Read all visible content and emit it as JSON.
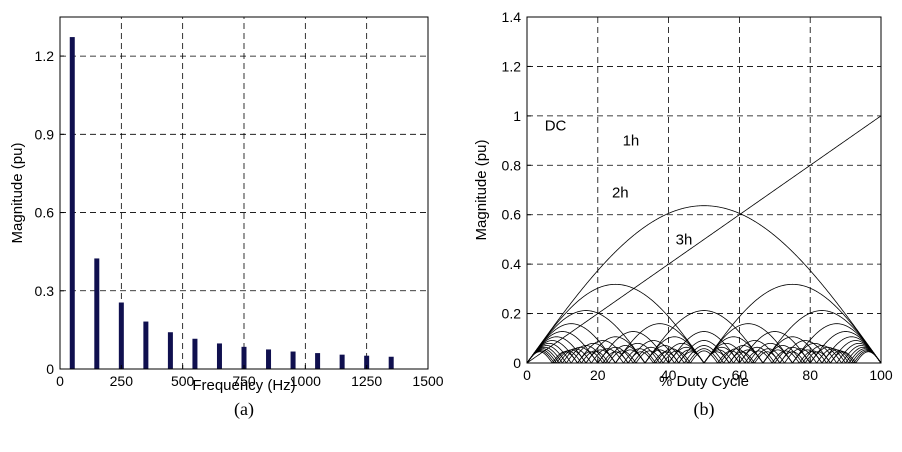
{
  "chart_data": [
    {
      "type": "bar",
      "caption": "(a)",
      "xlabel": "Frequency (Hz)",
      "ylabel": "Magnitude (pu)",
      "xlim": [
        0,
        1500
      ],
      "ylim": [
        0,
        1.35
      ],
      "xticks": [
        "0",
        "250",
        "500",
        "750",
        "1000",
        "1250",
        "1500"
      ],
      "yticks": [
        "0",
        "0.3",
        "0.6",
        "0.9",
        "1.2"
      ],
      "grid": true,
      "bar_color": "#10104f",
      "x": [
        50,
        150,
        250,
        350,
        450,
        550,
        650,
        750,
        850,
        950,
        1050,
        1150,
        1250,
        1350
      ],
      "values": [
        1.273,
        0.424,
        0.255,
        0.182,
        0.141,
        0.116,
        0.098,
        0.085,
        0.075,
        0.067,
        0.061,
        0.055,
        0.051,
        0.047
      ]
    },
    {
      "type": "line",
      "caption": "(b)",
      "xlabel": "% Duty Cycle",
      "ylabel": "Magnitude (pu)",
      "xlim": [
        0,
        100
      ],
      "ylim": [
        0,
        1.4
      ],
      "xticks": [
        "0",
        "20",
        "40",
        "60",
        "80",
        "100"
      ],
      "yticks": [
        "0",
        "0.2",
        "0.4",
        "0.6",
        "0.8",
        "1",
        "1.2",
        "1.4"
      ],
      "grid": true,
      "harmonic_count": 14,
      "annotations": [
        {
          "text": "DC",
          "x": 5,
          "y": 0.94
        },
        {
          "text": "1h",
          "x": 27,
          "y": 0.88
        },
        {
          "text": "2h",
          "x": 24,
          "y": 0.67
        },
        {
          "text": "3h",
          "x": 42,
          "y": 0.48
        }
      ]
    }
  ]
}
